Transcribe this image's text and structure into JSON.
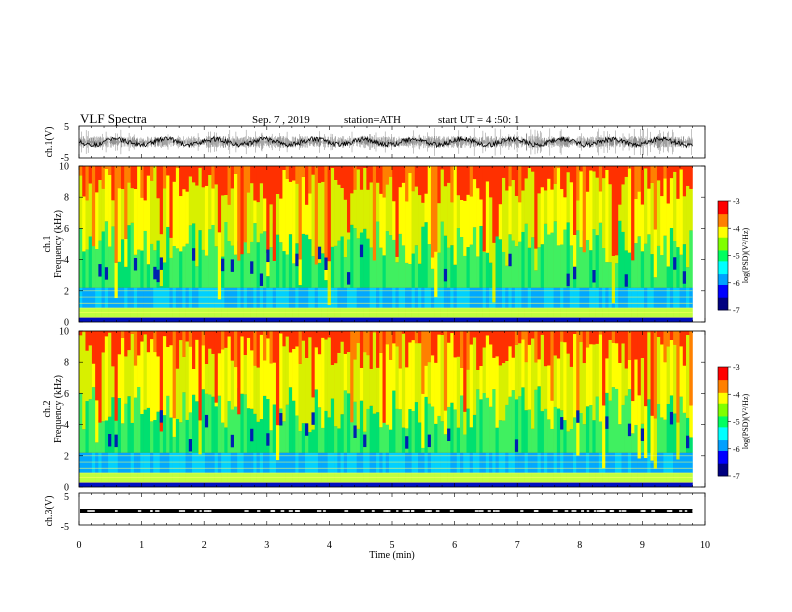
{
  "header": {
    "title": "VLF  Spectra",
    "date": "Sep. 7  , 2019",
    "station": "station=ATH",
    "start": "start  UT  =   4  :50: 1"
  },
  "chart_data": [
    {
      "id": "ch1-waveform",
      "type": "line",
      "ylabel": "ch.1(V)",
      "ylim": [
        -5,
        5
      ],
      "yticks": [
        "5",
        "-5"
      ],
      "xlim": [
        0,
        10
      ]
    },
    {
      "id": "ch1-spectrogram",
      "type": "heatmap",
      "ylabel": "ch.1\nFrequency  (kHz)",
      "ylabel_lines": [
        "ch.1",
        "Frequency  (kHz)"
      ],
      "ylim": [
        0,
        10
      ],
      "yticks": [
        "0",
        "2",
        "4",
        "6",
        "8",
        "10"
      ],
      "xlim": [
        0,
        10
      ],
      "data_end_min": 9.8,
      "colorbar": {
        "label": "log(PSD)(V²/Hz)",
        "range": [
          -7,
          -3
        ],
        "ticks": [
          "-3",
          "-4",
          "-5",
          "-6",
          "-7"
        ]
      }
    },
    {
      "id": "ch2-spectrogram",
      "type": "heatmap",
      "ylabel_lines": [
        "ch.2",
        "Frequency  (kHz)"
      ],
      "ylim": [
        0,
        10
      ],
      "yticks": [
        "0",
        "2",
        "4",
        "6",
        "8",
        "10"
      ],
      "xlim": [
        0,
        10
      ],
      "data_end_min": 9.8,
      "colorbar": {
        "label": "log(PSD)(V²/Hz)",
        "range": [
          -7,
          -3
        ],
        "ticks": [
          "-3",
          "-4",
          "-5",
          "-6",
          "-7"
        ]
      }
    },
    {
      "id": "ch3-waveform",
      "type": "line",
      "ylabel": "ch.3(V)",
      "ylim": [
        -5,
        5
      ],
      "yticks": [
        "5",
        "-5"
      ],
      "xlim": [
        0,
        10
      ]
    }
  ],
  "xaxis": {
    "label": "Time  (min)",
    "ticks": [
      "0",
      "1",
      "2",
      "3",
      "4",
      "5",
      "6",
      "7",
      "8",
      "9",
      "10"
    ]
  },
  "colormap": [
    "#000080",
    "#0000ff",
    "#00a0ff",
    "#00ffff",
    "#00ff60",
    "#80ff00",
    "#ffff00",
    "#ff8000",
    "#ff0000",
    "#ffffff"
  ]
}
